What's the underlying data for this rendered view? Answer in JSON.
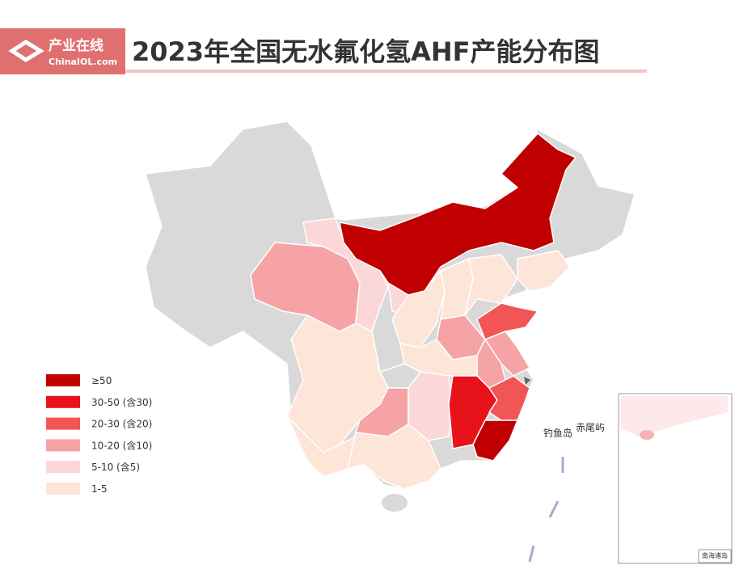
{
  "header": {
    "logo_cn": "产业在线",
    "logo_en": "ChinaIOL.com",
    "title": "2023年全国无水氟化氢AHF产能分布图"
  },
  "legend": {
    "items": [
      {
        "label": "≥50",
        "color": "#c00000"
      },
      {
        "label": "30-50 (含30)",
        "color": "#e8131a"
      },
      {
        "label": "20-30 (含20)",
        "color": "#f25555"
      },
      {
        "label": "10-20 (含10)",
        "color": "#f6a3a6"
      },
      {
        "label": "5-10 (含5)",
        "color": "#fbd7d8"
      },
      {
        "label": "1-5",
        "color": "#fde5d8"
      }
    ]
  },
  "map": {
    "island_labels": [
      "钓鱼岛",
      "赤尾屿"
    ],
    "inset_label": "南海诸岛"
  }
}
